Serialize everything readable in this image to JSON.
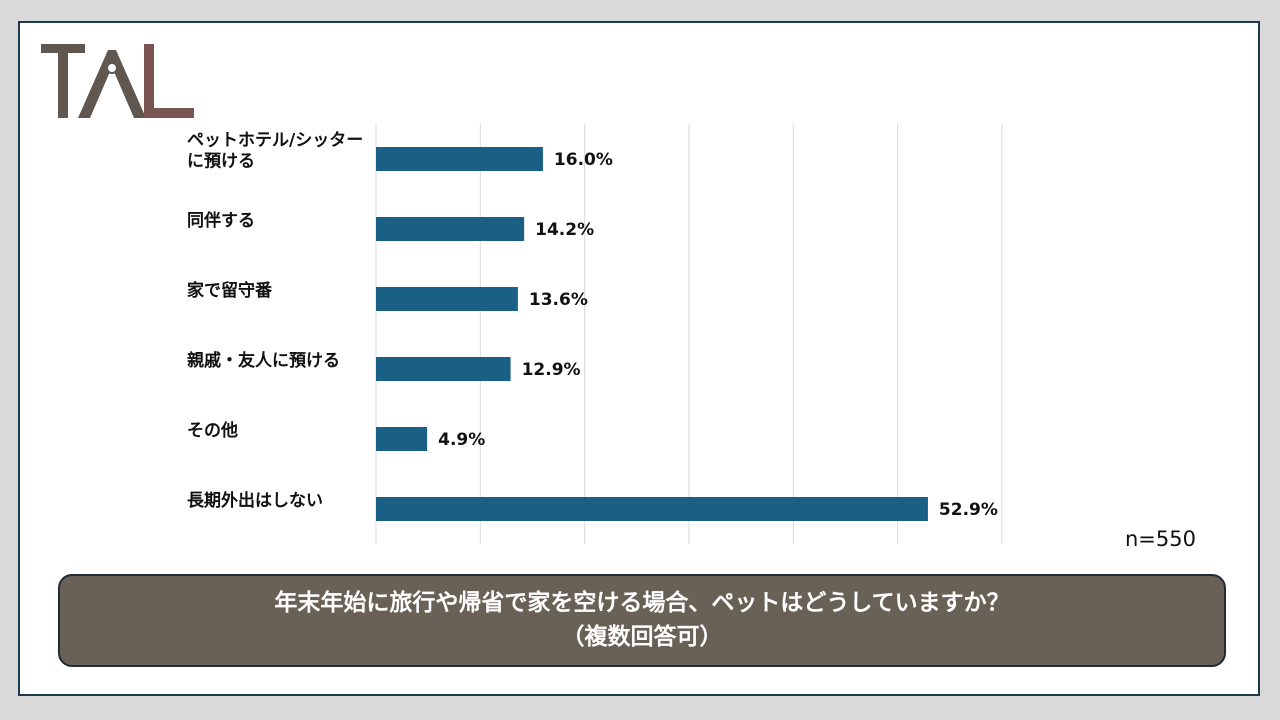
{
  "logo": {
    "text": "TAL",
    "colors": {
      "t": "#5f5750",
      "a": "#5f5750",
      "l": "#7a5552"
    }
  },
  "colors": {
    "bar": "#1a5f84",
    "grid": "#d9d9d9",
    "title_bg": "#6a6156",
    "frame": "#1e3a4c"
  },
  "sample_note": "n=550",
  "question": {
    "line1": "年末年始に旅行や帰省で家を空ける場合、ペットはどうしていますか？",
    "line2": "（複数回答可）"
  },
  "chart_data": {
    "type": "bar",
    "orientation": "horizontal",
    "categories": [
      [
        "ペットホテル/シッター",
        "に預ける"
      ],
      [
        "同伴する"
      ],
      [
        "家で留守番"
      ],
      [
        "親戚・友人に預ける"
      ],
      [
        "その他"
      ],
      [
        "長期外出はしない"
      ]
    ],
    "values": [
      16.0,
      14.2,
      13.6,
      12.9,
      4.9,
      52.9
    ],
    "value_labels": [
      "16.0%",
      "14.2%",
      "13.6%",
      "12.9%",
      "4.9%",
      "52.9%"
    ],
    "xlim": [
      0,
      60
    ],
    "grid": true,
    "title": "",
    "xlabel": "",
    "ylabel": ""
  }
}
